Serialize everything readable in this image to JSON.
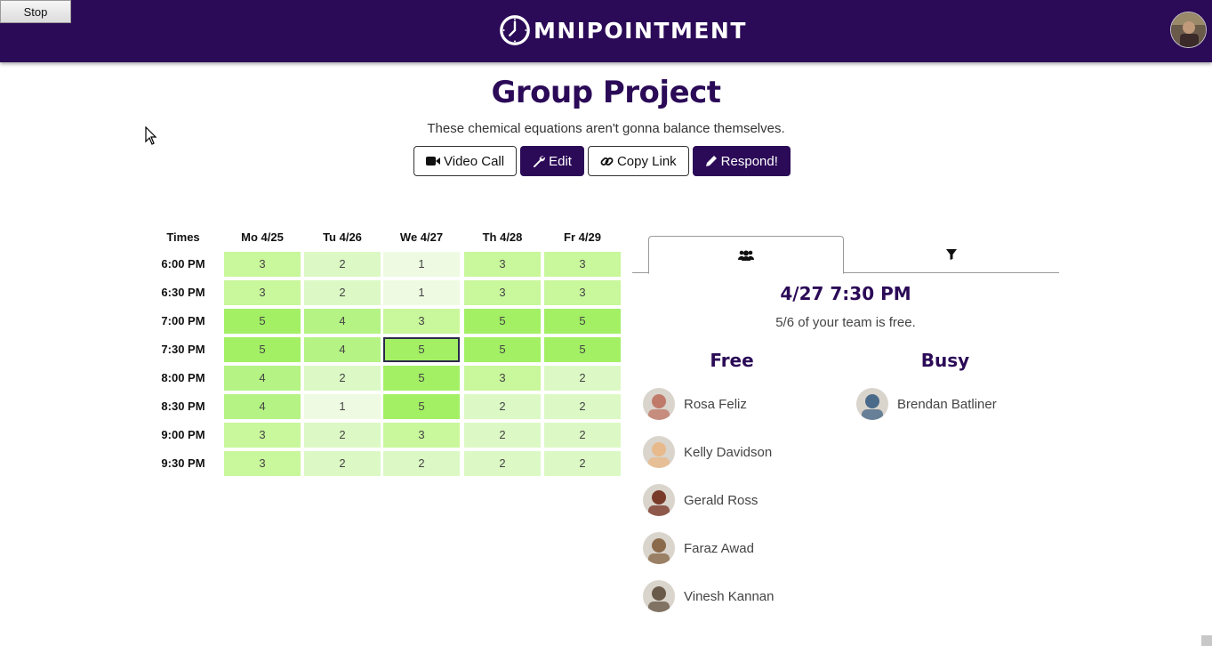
{
  "browser": {
    "stop_label": "Stop"
  },
  "header": {
    "brand": "MNIPOINTMENT",
    "brand_color": "#2b0a57"
  },
  "event": {
    "title": "Group Project",
    "description": "These chemical equations aren't gonna balance themselves."
  },
  "actions": {
    "video_call": "Video Call",
    "edit": "Edit",
    "copy_link": "Copy Link",
    "respond": "Respond!"
  },
  "grid": {
    "times_label": "Times",
    "days": [
      "Mo 4/25",
      "Tu 4/26",
      "We 4/27",
      "Th 4/28",
      "Fr 4/29"
    ],
    "times": [
      "6:00 PM",
      "6:30 PM",
      "7:00 PM",
      "7:30 PM",
      "8:00 PM",
      "8:30 PM",
      "9:00 PM",
      "9:30 PM"
    ],
    "counts": [
      [
        3,
        2,
        1,
        3,
        3
      ],
      [
        3,
        2,
        1,
        3,
        3
      ],
      [
        5,
        4,
        3,
        5,
        5
      ],
      [
        5,
        4,
        5,
        5,
        5
      ],
      [
        4,
        2,
        5,
        3,
        2
      ],
      [
        4,
        1,
        5,
        2,
        2
      ],
      [
        3,
        2,
        3,
        2,
        2
      ],
      [
        3,
        2,
        2,
        2,
        2
      ]
    ],
    "selected": {
      "day": "We 4/27",
      "time": "7:30 PM"
    },
    "heat_colors": {
      "1": "#eefbe2",
      "2": "#dcf9c5",
      "3": "#c9f79b",
      "4": "#b5f384",
      "5": "#a3f065"
    }
  },
  "detail": {
    "tabs": [
      {
        "name": "people",
        "icon": "users-icon",
        "active": true
      },
      {
        "name": "filter",
        "icon": "filter-icon",
        "active": false
      }
    ],
    "slot_title": "4/27 7:30 PM",
    "slot_summary": "5/6 of your team is free.",
    "free_label": "Free",
    "busy_label": "Busy",
    "free": [
      {
        "name": "Rosa Feliz",
        "avatar_color": "#c07a6a"
      },
      {
        "name": "Kelly Davidson",
        "avatar_color": "#e8b98a"
      },
      {
        "name": "Gerald Ross",
        "avatar_color": "#7a3a2a"
      },
      {
        "name": "Faraz Awad",
        "avatar_color": "#8a6a4a"
      },
      {
        "name": "Vinesh Kannan",
        "avatar_color": "#6a5a4a"
      }
    ],
    "busy": [
      {
        "name": "Brendan Batliner",
        "avatar_color": "#4a6a8a"
      }
    ]
  }
}
